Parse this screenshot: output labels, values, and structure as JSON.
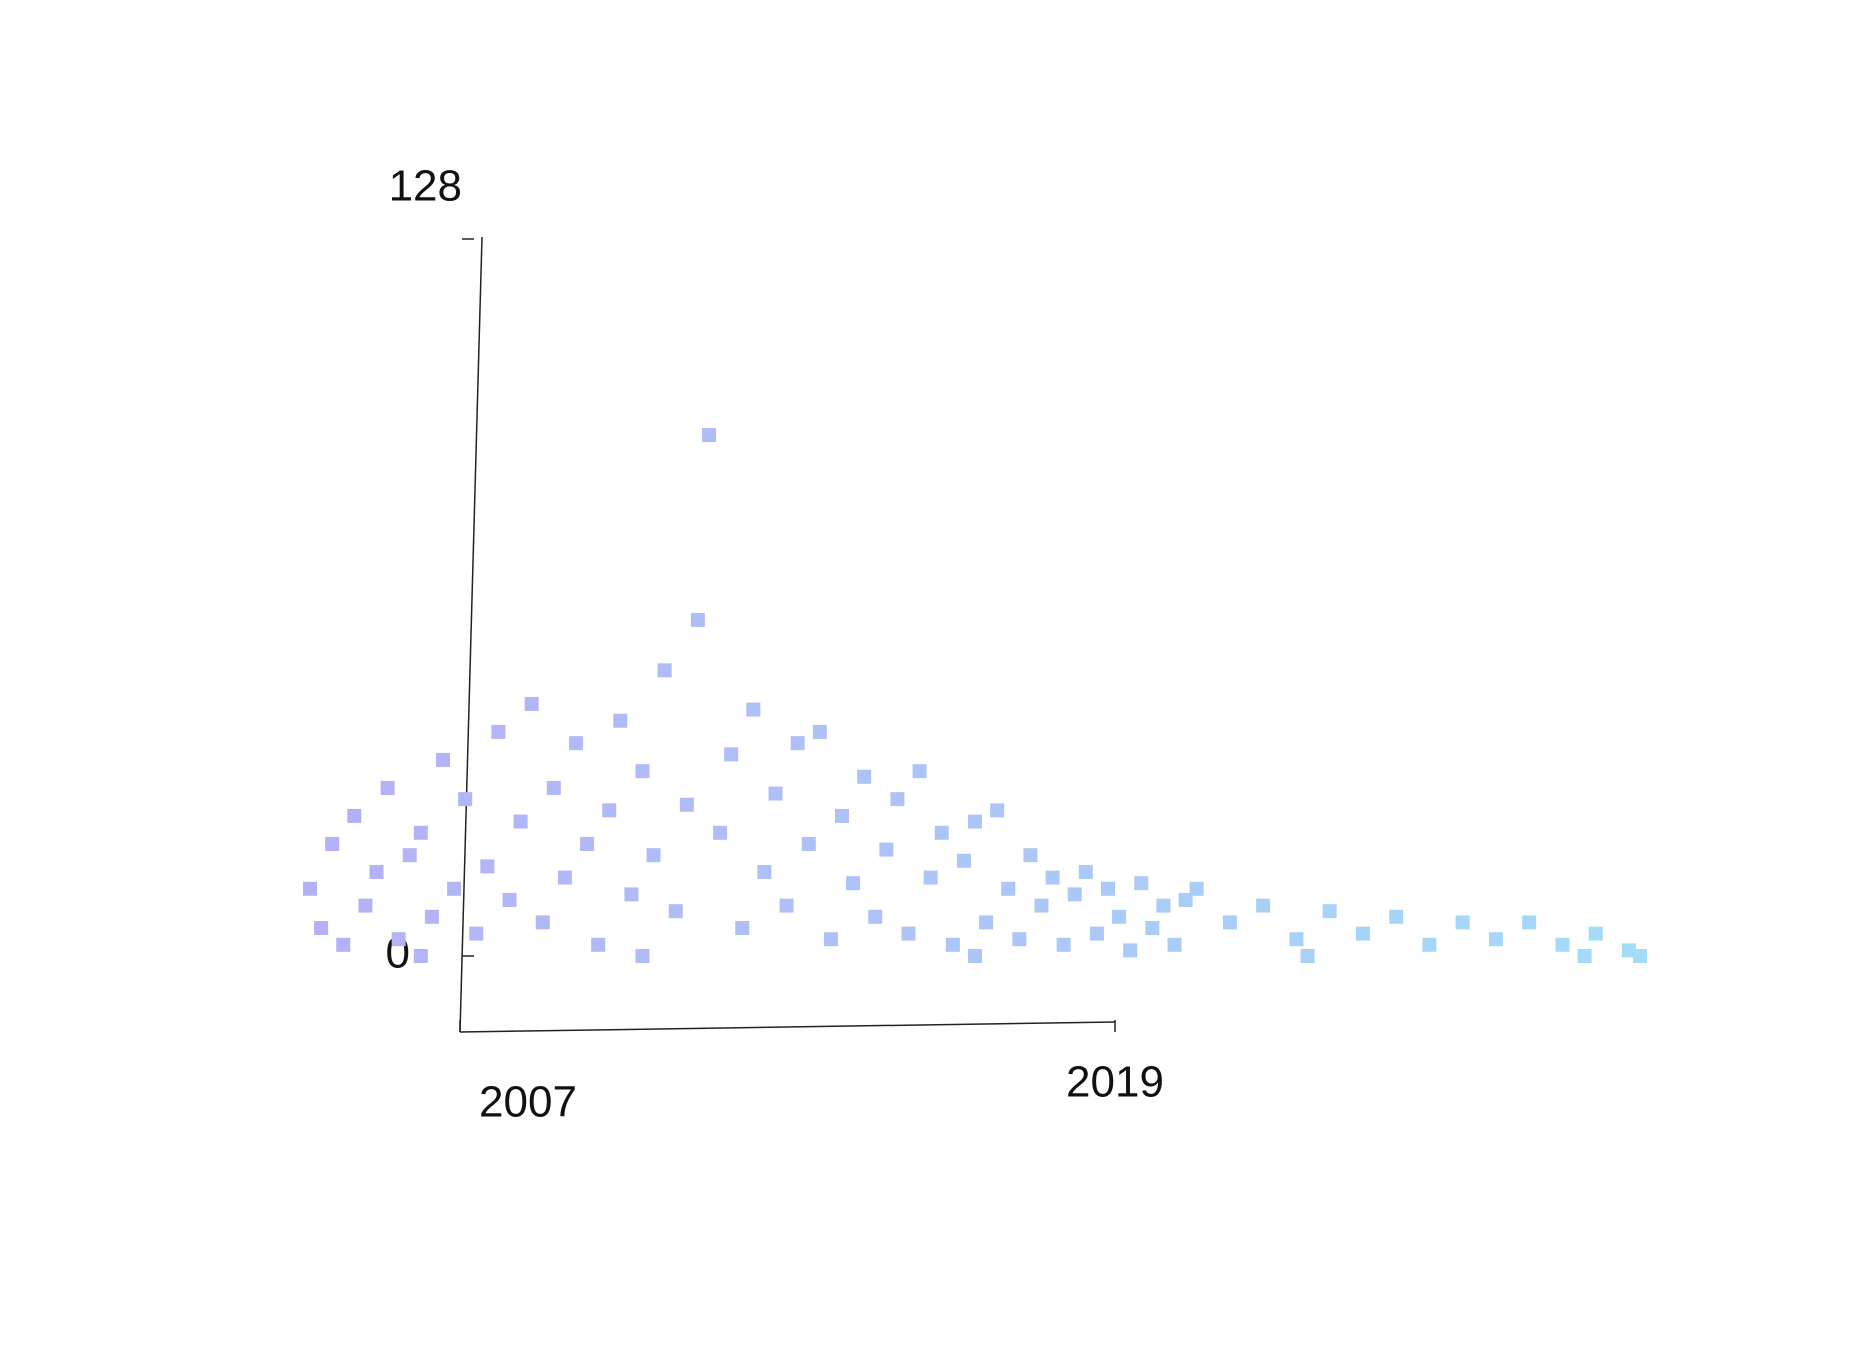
{
  "chart_data": {
    "type": "scatter",
    "x": [
      2007.0,
      2007.1,
      2007.2,
      2007.3,
      2007.4,
      2007.5,
      2007.6,
      2007.7,
      2007.8,
      2007.9,
      2008.0,
      2008.1,
      2008.2,
      2008.3,
      2008.4,
      2008.5,
      2008.6,
      2008.7,
      2008.8,
      2008.9,
      2009.0,
      2009.1,
      2009.2,
      2009.3,
      2009.4,
      2009.5,
      2009.6,
      2009.7,
      2009.8,
      2009.9,
      2010.0,
      2010.1,
      2010.2,
      2010.3,
      2010.4,
      2010.5,
      2010.6,
      2010.7,
      2010.8,
      2010.9,
      2011.0,
      2011.1,
      2011.2,
      2011.3,
      2011.4,
      2011.5,
      2011.6,
      2011.7,
      2011.8,
      2011.9,
      2012.0,
      2012.1,
      2012.2,
      2012.3,
      2012.4,
      2012.5,
      2012.6,
      2012.7,
      2012.8,
      2012.9,
      2013.0,
      2013.1,
      2013.2,
      2013.3,
      2013.4,
      2013.5,
      2013.6,
      2013.7,
      2013.8,
      2013.9,
      2014.0,
      2014.1,
      2014.2,
      2014.3,
      2014.4,
      2014.5,
      2014.6,
      2014.7,
      2014.8,
      2014.9,
      2015.0,
      2015.3,
      2015.6,
      2015.9,
      2016.2,
      2016.5,
      2016.8,
      2017.1,
      2017.4,
      2017.7,
      2018.0,
      2018.3,
      2018.6,
      2018.9,
      2019.0,
      2018.5,
      2016.0,
      2013.0,
      2010.0,
      2008.0
    ],
    "y": [
      12,
      5,
      20,
      2,
      25,
      9,
      15,
      30,
      3,
      18,
      22,
      7,
      35,
      12,
      28,
      4,
      16,
      40,
      10,
      24,
      45,
      6,
      30,
      14,
      38,
      20,
      2,
      26,
      42,
      11,
      33,
      18,
      51,
      8,
      27,
      60,
      93,
      22,
      36,
      5,
      44,
      15,
      29,
      9,
      38,
      20,
      40,
      3,
      25,
      13,
      32,
      7,
      19,
      28,
      4,
      33,
      14,
      22,
      2,
      17,
      24,
      6,
      26,
      12,
      3,
      18,
      9,
      14,
      2,
      11,
      15,
      4,
      12,
      7,
      1,
      13,
      5,
      9,
      2,
      10,
      12,
      6,
      9,
      3,
      8,
      4,
      7,
      2,
      6,
      3,
      6,
      2,
      4,
      1,
      0,
      0,
      0,
      0,
      0,
      0
    ],
    "xlim": [
      2007,
      2019
    ],
    "xticks": [
      2007,
      2019
    ],
    "ylim": [
      0,
      128
    ],
    "yticks": [
      0,
      128
    ],
    "colorscale": [
      "#b4b0f6",
      "#a4dcf8"
    ]
  }
}
